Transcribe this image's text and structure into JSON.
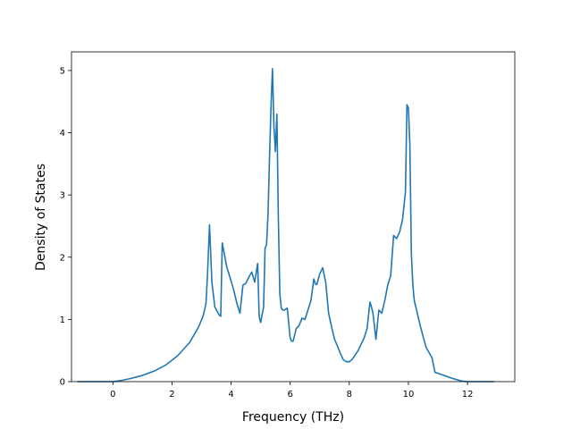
{
  "chart_data": {
    "type": "line",
    "title": "",
    "xlabel": "Frequency (THz)",
    "ylabel": "Density of States",
    "xlim": [
      -1.4,
      13.6
    ],
    "ylim": [
      0,
      5.3
    ],
    "xticks": [
      0,
      2,
      4,
      6,
      8,
      10,
      12
    ],
    "yticks": [
      0,
      1,
      2,
      3,
      4,
      5
    ],
    "grid": false,
    "legend": "none",
    "line_color": "#1f77b4",
    "series": [
      {
        "x": [
          -1.2,
          -0.8,
          -0.4,
          0.0,
          0.3,
          0.6,
          1.0,
          1.4,
          1.8,
          2.2,
          2.6,
          2.9,
          3.05,
          3.15,
          3.2,
          3.27,
          3.35,
          3.45,
          3.6,
          3.65,
          3.7,
          3.85,
          4.0,
          4.1,
          4.2,
          4.3,
          4.4,
          4.5,
          4.6,
          4.7,
          4.8,
          4.9,
          4.95,
          5.0,
          5.1,
          5.15,
          5.2,
          5.25,
          5.3,
          5.35,
          5.4,
          5.45,
          5.5,
          5.55,
          5.6,
          5.65,
          5.7,
          5.75,
          5.8,
          5.9,
          6.0,
          6.05,
          6.1,
          6.2,
          6.3,
          6.4,
          6.5,
          6.6,
          6.7,
          6.8,
          6.85,
          6.9,
          7.0,
          7.1,
          7.2,
          7.3,
          7.4,
          7.5,
          7.6,
          7.7,
          7.8,
          7.9,
          8.0,
          8.1,
          8.2,
          8.3,
          8.4,
          8.5,
          8.6,
          8.7,
          8.75,
          8.8,
          8.85,
          8.9,
          9.0,
          9.1,
          9.2,
          9.3,
          9.4,
          9.5,
          9.6,
          9.7,
          9.8,
          9.9,
          9.95,
          10.0,
          10.05,
          10.1,
          10.15,
          10.2,
          10.3,
          10.4,
          10.5,
          10.6,
          10.8,
          10.9,
          11.2,
          11.5,
          11.8,
          12.0,
          12.9
        ],
        "y": [
          0.0,
          0.0,
          0.0,
          0.0,
          0.02,
          0.05,
          0.1,
          0.17,
          0.27,
          0.42,
          0.63,
          0.88,
          1.05,
          1.25,
          1.7,
          2.52,
          1.6,
          1.2,
          1.07,
          1.05,
          2.23,
          1.85,
          1.62,
          1.45,
          1.25,
          1.1,
          1.55,
          1.58,
          1.68,
          1.76,
          1.6,
          1.9,
          1.05,
          0.95,
          1.2,
          2.15,
          2.2,
          2.7,
          3.6,
          4.4,
          5.03,
          4.1,
          3.7,
          4.3,
          2.6,
          1.4,
          1.18,
          1.15,
          1.15,
          1.18,
          0.7,
          0.65,
          0.65,
          0.85,
          0.9,
          1.02,
          1.0,
          1.15,
          1.3,
          1.65,
          1.57,
          1.56,
          1.73,
          1.83,
          1.6,
          1.1,
          0.88,
          0.68,
          0.57,
          0.45,
          0.35,
          0.32,
          0.32,
          0.36,
          0.43,
          0.5,
          0.6,
          0.7,
          0.85,
          1.28,
          1.2,
          1.1,
          0.9,
          0.68,
          1.15,
          1.1,
          1.3,
          1.55,
          1.7,
          2.35,
          2.3,
          2.4,
          2.6,
          3.05,
          4.45,
          4.4,
          3.8,
          2.05,
          1.55,
          1.3,
          1.1,
          0.9,
          0.72,
          0.55,
          0.38,
          0.15,
          0.1,
          0.05,
          0.01,
          0.0,
          0.0
        ]
      }
    ]
  }
}
